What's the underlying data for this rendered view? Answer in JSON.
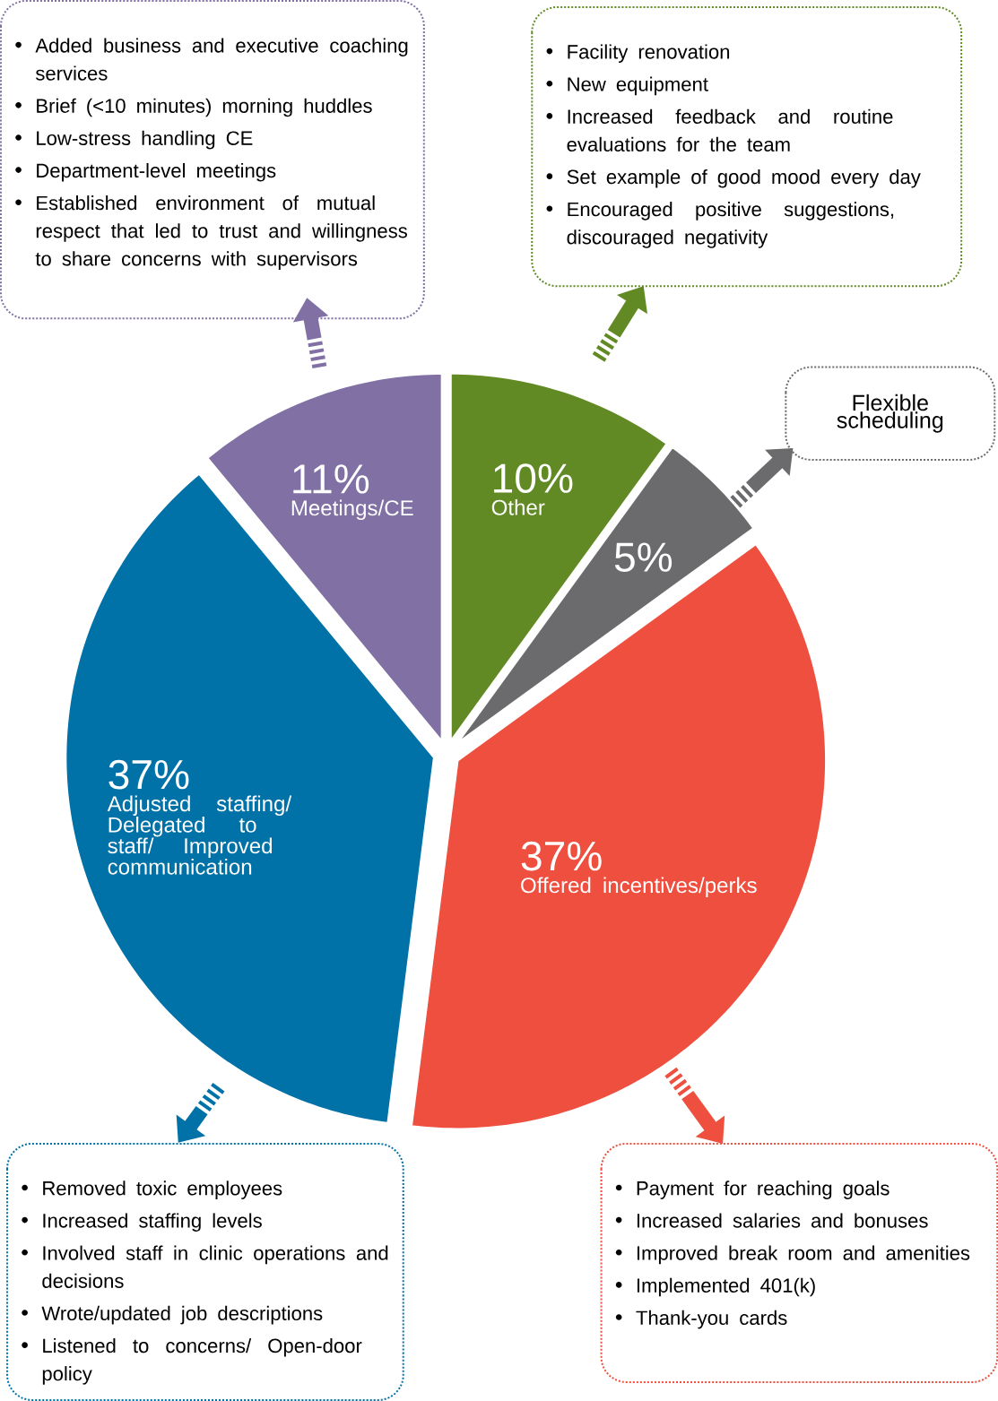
{
  "chart_data": {
    "type": "pie",
    "categories": [
      "Other",
      null,
      "Offered incentives/perks",
      "Adjusted staffing/ Delegated to staff/ Improved communication",
      "Meetings/CE"
    ],
    "values": [
      10,
      5,
      37,
      37,
      11
    ],
    "colors": [
      "#628a24",
      "#6b6b6d",
      "#ee4f3f",
      "#0072a8",
      "#8070a4"
    ],
    "value_labels": [
      "10%",
      "5%",
      "37%",
      "37%",
      "11%"
    ],
    "annotations": [
      "Added business and executive coaching services",
      "Brief (<10 minutes) morning huddles",
      "Low-stress handling CE",
      "Department-level meetings",
      "Established environment of mutual respect that led to trust and willingness to share concerns with supervisors",
      "Facility renovation",
      "New equipment",
      "Increased feedback and routine evaluations for the team",
      "Set example of good mood every day",
      "Encouraged positive suggestions, discouraged negativity",
      "Flexible scheduling",
      "Removed toxic employees",
      "Increased staffing levels",
      "Involved staff in clinic operations and decisions",
      "Wrote/updated job descriptions",
      "Listened to concerns/ Open-door policy",
      "Payment for reaching goals",
      "Increased salaries and bonuses",
      "Improved break room and amenities",
      "Implemented 401(k)",
      "Thank-you cards"
    ]
  }
}
